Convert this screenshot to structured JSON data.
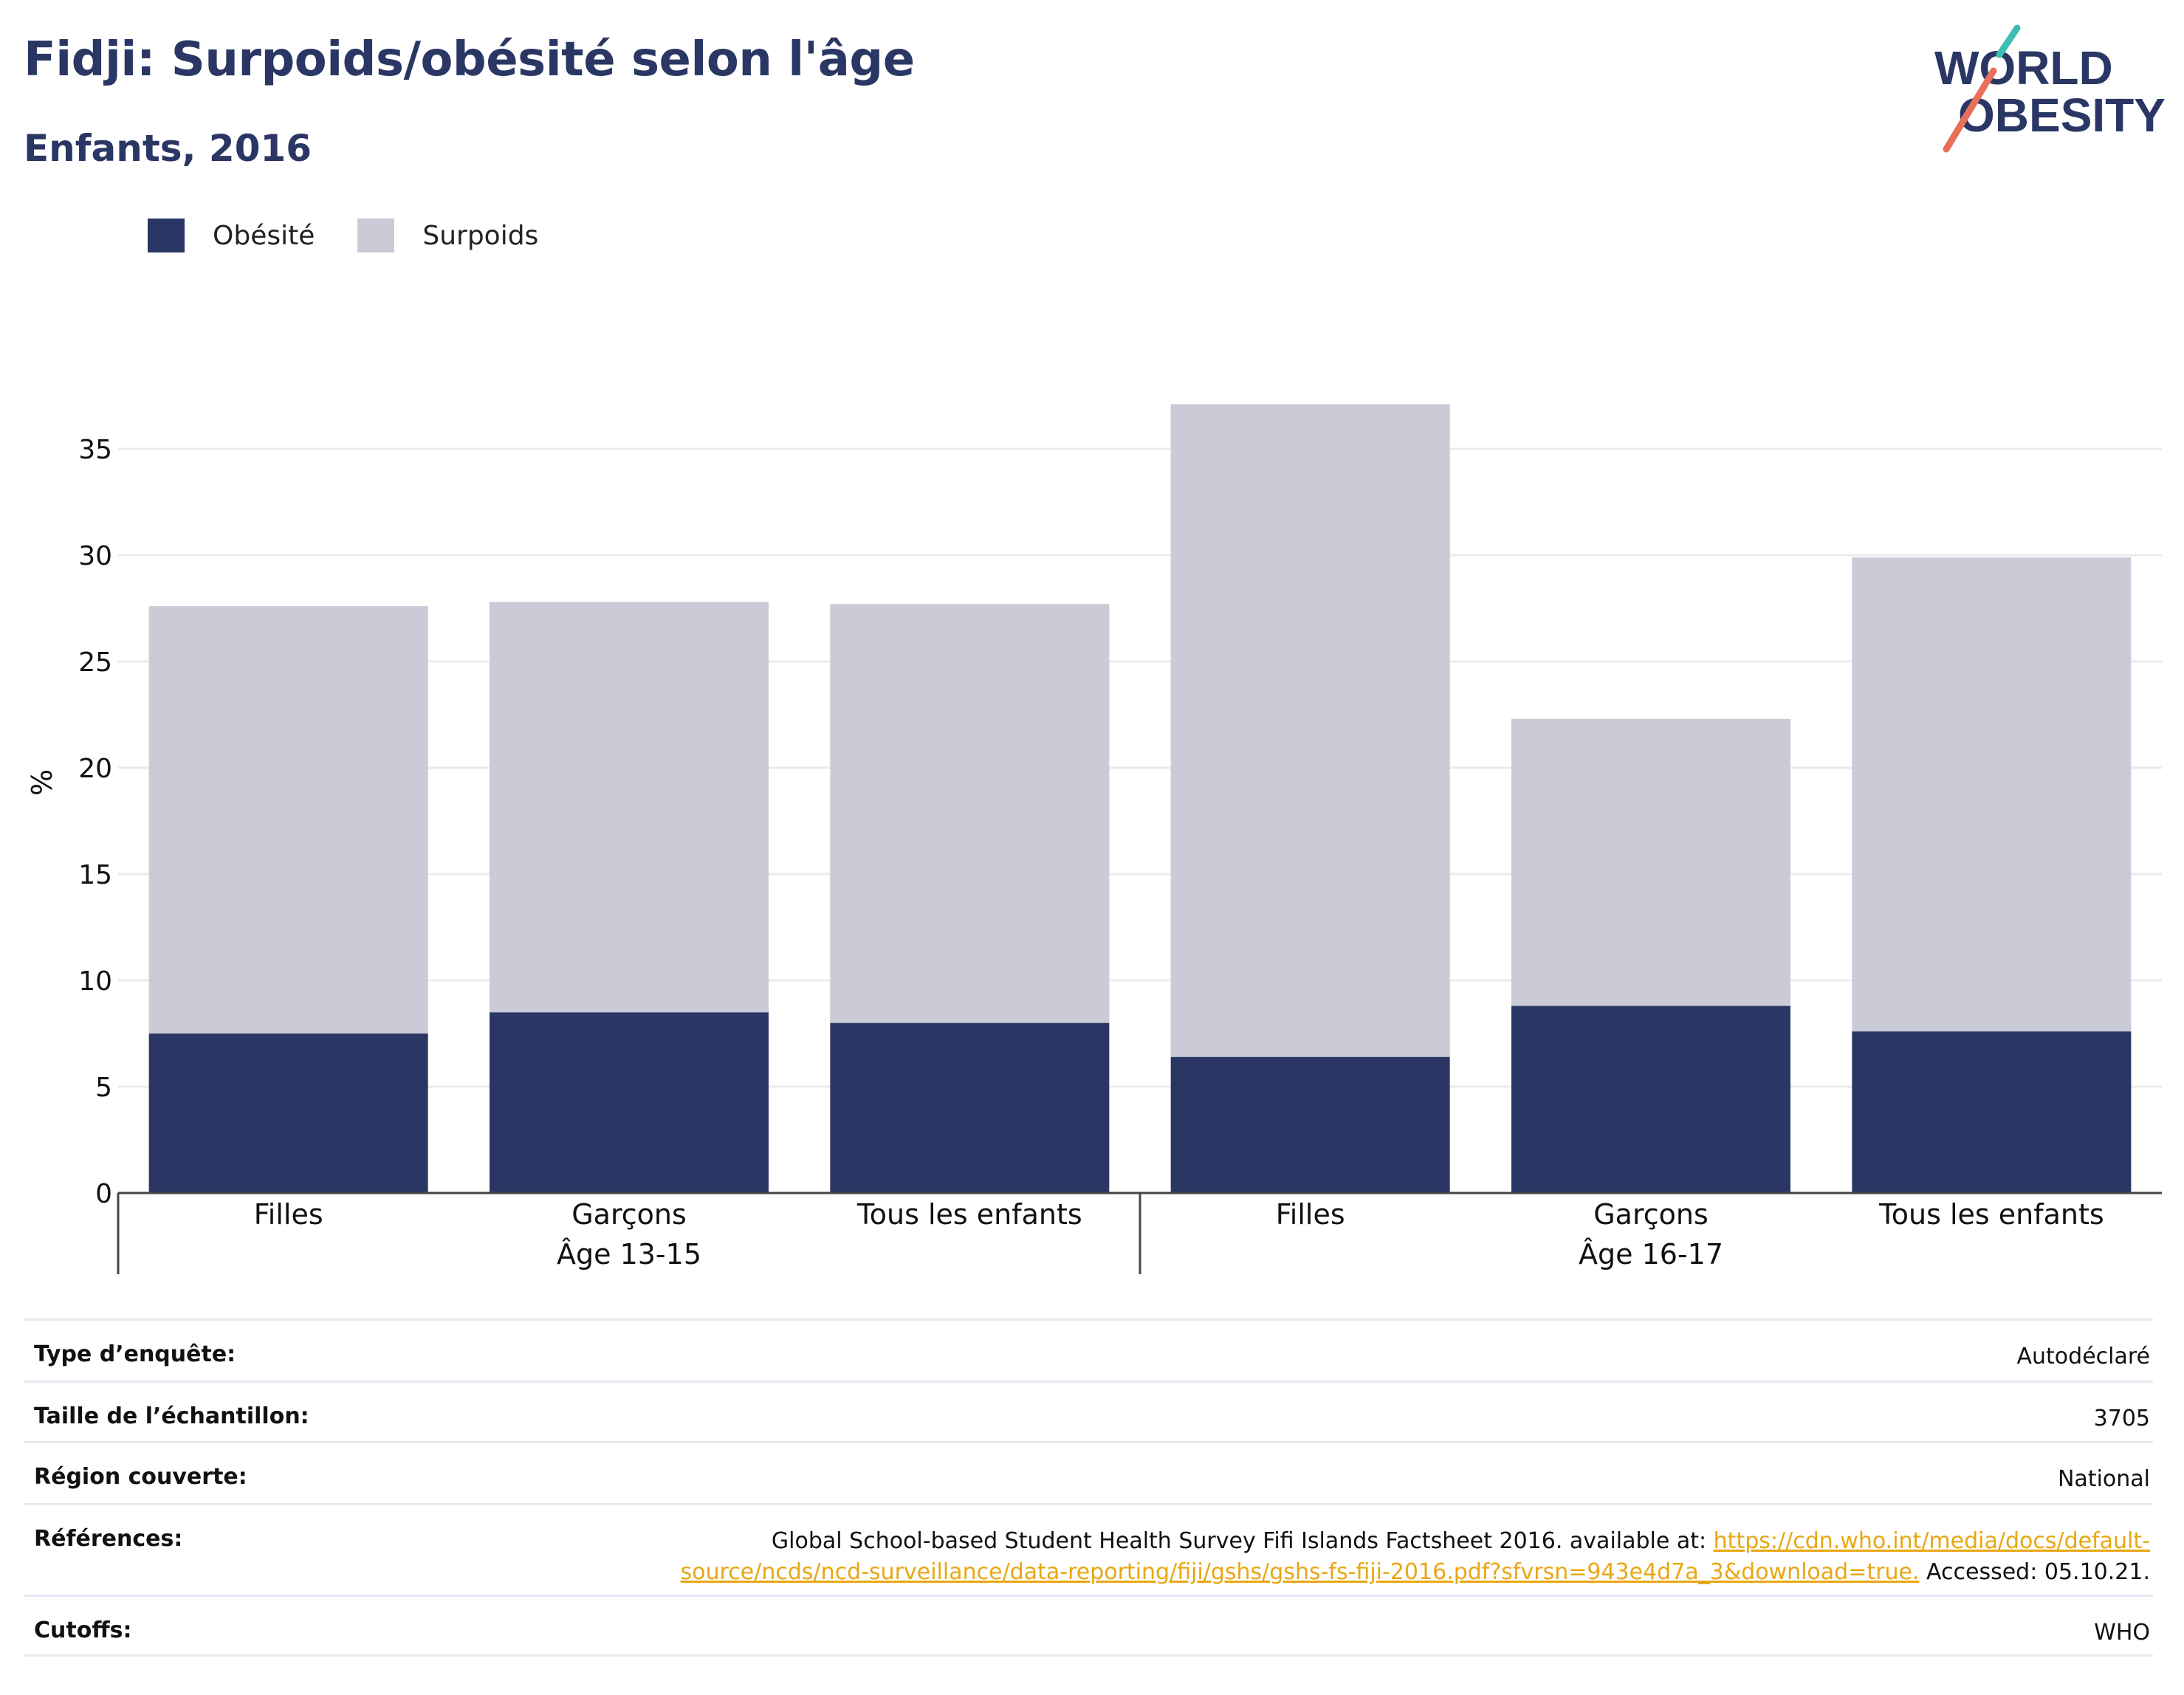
{
  "header": {
    "title": "Fidji: Surpoids/obésité selon l'âge",
    "subtitle": "Enfants, 2016"
  },
  "logo": {
    "line1": "WORLD",
    "line2": "OBESITY",
    "colors": {
      "text": "#2a3764",
      "slash_teal": "#3dbdb3",
      "slash_coral": "#e8705a"
    }
  },
  "legend": [
    {
      "label": "Obésité",
      "color": "#2a3764"
    },
    {
      "label": "Surpoids",
      "color": "#cacbd7"
    }
  ],
  "chart_data": {
    "type": "bar",
    "stacked": true,
    "title": "",
    "xlabel": "",
    "ylabel": "%",
    "ylim": [
      0,
      38
    ],
    "yticks": [
      0,
      5,
      10,
      15,
      20,
      25,
      30,
      35
    ],
    "grid": true,
    "legend_position": "top-left",
    "groups": [
      {
        "label": "Âge 13-15",
        "categories": [
          "Filles",
          "Garçons",
          "Tous les enfants"
        ]
      },
      {
        "label": "Âge 16-17",
        "categories": [
          "Filles",
          "Garçons",
          "Tous les enfants"
        ]
      }
    ],
    "categories": [
      "Filles",
      "Garçons",
      "Tous les enfants",
      "Filles",
      "Garçons",
      "Tous les enfants"
    ],
    "series": [
      {
        "name": "Obésité",
        "color": "#2a3764",
        "values": [
          7.5,
          8.5,
          8.0,
          6.4,
          8.8,
          7.6
        ]
      },
      {
        "name": "Surpoids",
        "color": "#cacbd7",
        "values": [
          20.1,
          19.3,
          19.7,
          30.7,
          13.5,
          22.3
        ]
      }
    ]
  },
  "info": [
    {
      "label": "Type d’enquête:",
      "value": "Autodéclaré"
    },
    {
      "label": "Taille de l’échantillon:",
      "value": "3705"
    },
    {
      "label": "Région couverte:",
      "value": "National"
    },
    {
      "label": "Références:",
      "value_prefix": "Global School-based Student Health Survey Fifi Islands Factsheet 2016. available at:",
      "link_part1": "https://cdn.who.int/media/docs/default-",
      "link_part2": "source/ncds/ncd-surveillance/data-reporting/fiji/gshs/gshs-fs-fiji-2016.pdf?sfvrsn=943e4d7a_3&download=true.",
      "value_suffix": "Accessed: 05.10.21."
    },
    {
      "label": "Cutoffs:",
      "value": "WHO"
    }
  ]
}
